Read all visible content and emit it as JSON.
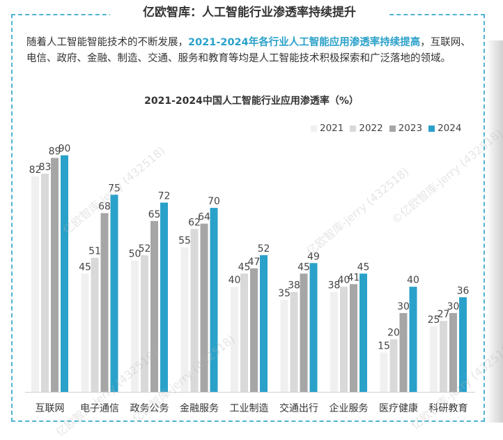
{
  "header": {
    "title": "亿欧智库：人工智能行业渗透率持续提升"
  },
  "intro": {
    "text_before": "随着人工智能智能技术的不断发展，",
    "highlight": "2021-2024年各行业人工智能应用渗透率持续提高",
    "text_after": "，互联网、电信、政府、金融、制造、交通、服务和教育等均是人工智能技术积极探索和广泛落地的领域。"
  },
  "watermarks": [
    "亿欧智库-jerry (432518)",
    "亿欧智库-jerry (432518)",
    "©亿欧智库-jerry (432518)",
    "亿欧智库-jerry (432518)",
    "亿欧智库-jerry (432518)",
    "亿欧智库-jerry (432518)"
  ],
  "colors": {
    "accent": "#4fb3cf",
    "s2021": "#f0f0f0",
    "s2022": "#d9d9d9",
    "s2023": "#a6a6a6",
    "s2024": "#2aa1c9"
  },
  "chart_data": {
    "type": "bar",
    "title": "2021-2024中国人工智能行业应用渗透率（%）",
    "categories": [
      "互联网",
      "电子通信",
      "政务公务",
      "金融服务",
      "工业制造",
      "交通出行",
      "企业服务",
      "医疗健康",
      "科研教育"
    ],
    "series": [
      {
        "name": "2021",
        "color": "#f0f0f0",
        "values": [
          82,
          45,
          50,
          55,
          40,
          35,
          38,
          15,
          25
        ]
      },
      {
        "name": "2022",
        "color": "#d9d9d9",
        "values": [
          83,
          51,
          52,
          62,
          45,
          38,
          40,
          20,
          27
        ]
      },
      {
        "name": "2023",
        "color": "#a6a6a6",
        "values": [
          89,
          68,
          65,
          64,
          47,
          45,
          41,
          30,
          30
        ]
      },
      {
        "name": "2024",
        "color": "#2aa1c9",
        "values": [
          90,
          75,
          72,
          70,
          52,
          49,
          45,
          40,
          36
        ]
      }
    ],
    "ylim": [
      0,
      100
    ],
    "legend": "top-right",
    "grid": false
  }
}
